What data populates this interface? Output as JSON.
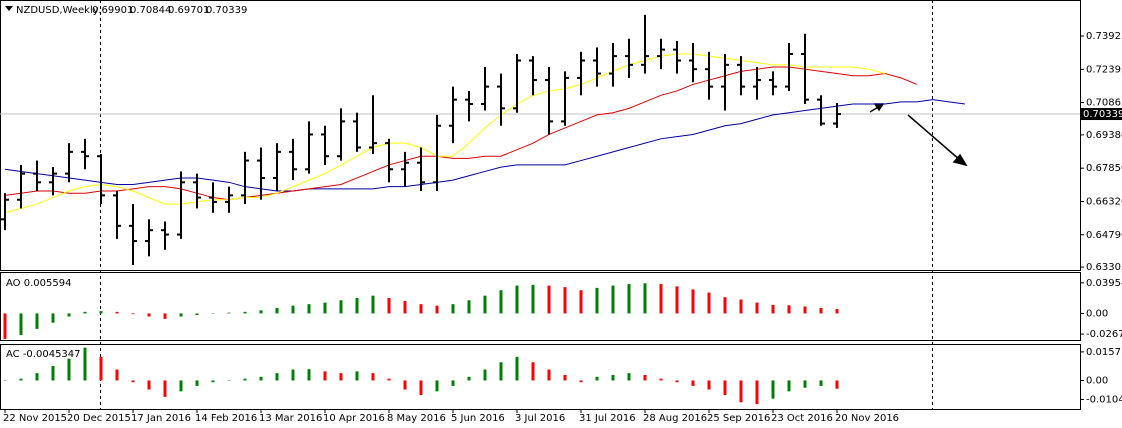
{
  "chart_data": {
    "type": "ohlc",
    "title": "NZDUSD,Weekly",
    "categories": [
      "22 Nov 2015",
      null,
      null,
      null,
      "20 Dec 2015",
      null,
      null,
      null,
      "17 Jan 2016",
      null,
      null,
      null,
      "14 Feb 2016",
      null,
      null,
      null,
      "13 Mar 2016",
      null,
      null,
      null,
      "10 Apr 2016",
      null,
      null,
      null,
      "8 May 2016",
      null,
      null,
      null,
      "5 Jun 2016",
      null,
      null,
      null,
      "3 Jul 2016",
      null,
      null,
      null,
      "31 Jul 2016",
      null,
      null,
      null,
      "28 Aug 2016",
      null,
      null,
      null,
      "25 Sep 2016",
      null,
      null,
      null,
      "23 Oct 2016",
      null,
      null,
      null,
      "20 Nov 2016",
      null,
      null,
      null,
      null,
      null,
      null,
      null,
      null
    ],
    "open": [
      0.655,
      0.664,
      0.676,
      0.672,
      0.676,
      0.686,
      0.684,
      0.666,
      0.652,
      0.645,
      0.65,
      0.648,
      0.672,
      0.665,
      0.663,
      0.666,
      0.682,
      0.674,
      0.686,
      0.678,
      0.694,
      0.684,
      0.7,
      0.688,
      0.69,
      0.678,
      0.681,
      0.672,
      0.698,
      0.71,
      0.708,
      0.716,
      0.706,
      0.728,
      0.719,
      0.7,
      0.72,
      0.728,
      0.722,
      0.73,
      0.726,
      0.73,
      0.733,
      0.728,
      0.724,
      0.716,
      0.726,
      0.716,
      0.719,
      0.716,
      0.731,
      0.71,
      0.69901,
      null,
      null,
      null,
      null,
      null,
      null,
      null,
      null
    ],
    "high": [
      0.667,
      0.68,
      0.682,
      0.679,
      0.69,
      0.692,
      0.685,
      0.668,
      0.662,
      0.655,
      0.654,
      0.677,
      0.676,
      0.672,
      0.67,
      0.686,
      0.688,
      0.69,
      0.692,
      0.7,
      0.698,
      0.706,
      0.704,
      0.712,
      0.692,
      0.686,
      0.688,
      0.703,
      0.716,
      0.714,
      0.725,
      0.722,
      0.731,
      0.73,
      0.725,
      0.723,
      0.732,
      0.734,
      0.736,
      0.738,
      0.749,
      0.738,
      0.737,
      0.736,
      0.732,
      0.731,
      0.73,
      0.725,
      0.723,
      0.736,
      0.7403,
      0.712,
      0.70844,
      null,
      null,
      null,
      null,
      null,
      null,
      null,
      null
    ],
    "low": [
      0.65,
      0.66,
      0.668,
      0.666,
      0.672,
      0.678,
      0.662,
      0.646,
      0.634,
      0.638,
      0.641,
      0.646,
      0.66,
      0.658,
      0.658,
      0.662,
      0.664,
      0.668,
      0.673,
      0.676,
      0.68,
      0.682,
      0.686,
      0.685,
      0.672,
      0.67,
      0.668,
      0.668,
      0.69,
      0.7,
      0.705,
      0.698,
      0.704,
      0.712,
      0.694,
      0.698,
      0.712,
      0.716,
      0.716,
      0.72,
      0.722,
      0.724,
      0.722,
      0.718,
      0.71,
      0.705,
      0.712,
      0.71,
      0.712,
      0.714,
      0.708,
      0.698,
      0.69701,
      null,
      null,
      null,
      null,
      null,
      null,
      null,
      null
    ],
    "close": [
      0.664,
      0.676,
      0.672,
      0.676,
      0.686,
      0.684,
      0.666,
      0.652,
      0.645,
      0.65,
      0.648,
      0.672,
      0.665,
      0.663,
      0.666,
      0.682,
      0.674,
      0.686,
      0.678,
      0.694,
      0.684,
      0.7,
      0.688,
      0.69,
      0.678,
      0.681,
      0.672,
      0.698,
      0.71,
      0.708,
      0.716,
      0.706,
      0.728,
      0.719,
      0.7,
      0.72,
      0.728,
      0.722,
      0.73,
      0.726,
      0.73,
      0.733,
      0.728,
      0.724,
      0.716,
      0.726,
      0.716,
      0.719,
      0.716,
      0.731,
      0.71,
      0.699,
      0.70339,
      null,
      null,
      null,
      null,
      null,
      null,
      null,
      null
    ],
    "bar_color": "#000000",
    "series": [
      {
        "color": "#0000a0",
        "values": [
          0.678,
          0.677,
          0.676,
          0.675,
          0.674,
          0.673,
          0.672,
          0.671,
          0.671,
          0.672,
          0.673,
          0.674,
          0.674,
          0.673,
          0.672,
          0.67,
          0.669,
          0.668,
          0.668,
          0.669,
          0.669,
          0.669,
          0.669,
          0.669,
          0.67,
          0.67,
          0.671,
          0.672,
          0.673,
          0.675,
          0.677,
          0.679,
          0.68,
          0.68,
          0.68,
          0.68,
          0.682,
          0.684,
          0.686,
          0.688,
          0.69,
          0.692,
          0.693,
          0.694,
          0.696,
          0.698,
          0.699,
          0.701,
          0.703,
          0.704,
          0.705,
          0.706,
          0.707,
          0.708,
          0.708,
          0.708,
          0.709,
          0.709,
          0.71,
          0.709,
          0.708
        ]
      },
      {
        "color": "#e00000",
        "values": [
          0.666,
          0.667,
          0.668,
          0.668,
          0.667,
          0.667,
          0.668,
          0.668,
          0.669,
          0.67,
          0.67,
          0.669,
          0.667,
          0.665,
          0.664,
          0.665,
          0.666,
          0.667,
          0.668,
          0.669,
          0.67,
          0.671,
          0.674,
          0.677,
          0.68,
          0.682,
          0.684,
          0.684,
          0.683,
          0.683,
          0.684,
          0.684,
          0.687,
          0.69,
          0.694,
          0.697,
          0.7,
          0.703,
          0.704,
          0.706,
          0.709,
          0.712,
          0.714,
          0.717,
          0.719,
          0.721,
          0.723,
          0.724,
          0.725,
          0.725,
          0.724,
          0.723,
          0.722,
          0.721,
          0.721,
          0.722,
          0.72,
          0.717,
          null,
          null,
          null
        ]
      },
      {
        "color": "#ffff00",
        "values": [
          0.658,
          0.66,
          0.662,
          0.665,
          0.668,
          0.67,
          0.671,
          0.67,
          0.668,
          0.665,
          0.662,
          0.662,
          0.663,
          0.664,
          0.664,
          0.665,
          0.665,
          0.667,
          0.67,
          0.673,
          0.676,
          0.68,
          0.684,
          0.688,
          0.69,
          0.69,
          0.688,
          0.684,
          0.684,
          0.69,
          0.697,
          0.703,
          0.708,
          0.712,
          0.714,
          0.715,
          0.717,
          0.72,
          0.723,
          0.726,
          0.728,
          0.73,
          0.731,
          0.731,
          0.73,
          0.729,
          0.728,
          0.727,
          0.726,
          0.726,
          0.725,
          0.725,
          0.725,
          0.725,
          0.724,
          0.722,
          null,
          null,
          null,
          null,
          null
        ]
      }
    ],
    "ylim": [
      0.6317,
      0.7558
    ],
    "yticks": [
      0.73925,
      0.72395,
      0.70865,
      {
        "value": 0.6938,
        "label": "0.69380"
      },
      {
        "value": 0.6785,
        "label": "0.67850"
      },
      {
        "value": 0.6632,
        "label": "0.66320"
      },
      {
        "value": 0.6479,
        "label": "0.64790"
      },
      0.63305
    ],
    "indicators": [
      {
        "type": "histogram",
        "title": "AO 0.005594",
        "up_color": "#008000",
        "down_color": "#ff0000",
        "values": [
          -0.033,
          -0.028,
          -0.02,
          -0.012,
          -0.004,
          0.002,
          0.003,
          0.002,
          -0.001,
          -0.004,
          -0.007,
          -0.004,
          -0.002,
          0.0005,
          0.001,
          0.002,
          0.004,
          0.007,
          0.01,
          0.012,
          0.014,
          0.017,
          0.02,
          0.023,
          0.02,
          0.016,
          0.012,
          0.01,
          0.012,
          0.017,
          0.023,
          0.03,
          0.036,
          0.037,
          0.036,
          0.034,
          0.03,
          0.033,
          0.036,
          0.038,
          0.039,
          0.038,
          0.035,
          0.031,
          0.027,
          0.021,
          0.018,
          0.014,
          0.011,
          0.0105,
          0.009,
          0.007,
          0.005594,
          null,
          null,
          null,
          null,
          null,
          null,
          null,
          null
        ],
        "ylim": [
          -0.0344,
          0.0523
        ],
        "yticks": [
          0.039542,
          {
            "value": 0,
            "label": "0.00"
          },
          -0.026731
        ]
      },
      {
        "type": "histogram",
        "title": "AC -0.0045347",
        "up_color": "#008000",
        "down_color": "#ff0000",
        "values": [
          0.0002,
          0.001,
          0.004,
          0.008,
          0.012,
          0.018,
          0.013,
          0.006,
          -0.001,
          -0.005,
          -0.009,
          -0.006,
          -0.003,
          -0.001,
          0.0002,
          0.001,
          0.002,
          0.004,
          0.006,
          0.0062,
          0.005,
          0.004,
          0.005,
          0.004,
          0.001,
          -0.005,
          -0.008,
          -0.006,
          -0.003,
          0.002,
          0.006,
          0.01,
          0.013,
          0.01,
          0.006,
          0.003,
          -0.001,
          0.002,
          0.003,
          0.004,
          0.003,
          0.001,
          -0.001,
          -0.003,
          -0.005,
          -0.008,
          -0.012,
          -0.013,
          -0.01,
          -0.006,
          -0.004,
          -0.003,
          -0.0045347,
          null,
          null,
          null,
          null,
          null,
          null,
          null,
          null
        ],
        "ylim": [
          -0.0157,
          0.0195
        ],
        "yticks": [
          0.015711,
          {
            "value": 0,
            "label": "0.00"
          },
          {
            "value": -0.01044,
            "label": "-0.010440"
          }
        ]
      }
    ]
  }
}
